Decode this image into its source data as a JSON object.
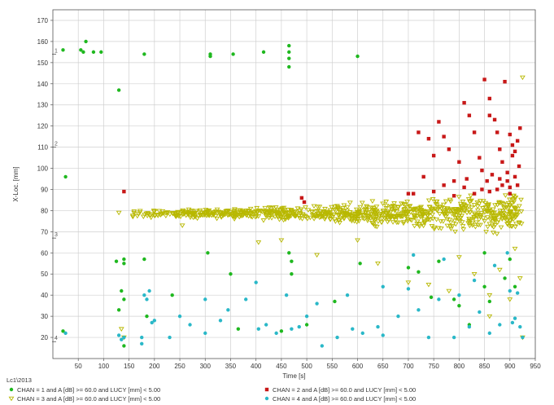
{
  "chart_data": {
    "type": "scatter",
    "title": "",
    "xlabel": "Time [s]",
    "ylabel": "X-Loc. [mm]",
    "xlim": [
      0,
      950
    ],
    "ylim": [
      10,
      175
    ],
    "x_ticks": [
      50,
      100,
      150,
      200,
      250,
      300,
      350,
      400,
      450,
      500,
      550,
      600,
      650,
      700,
      750,
      800,
      850,
      900,
      950
    ],
    "y_ticks": [
      20,
      30,
      40,
      50,
      60,
      70,
      80,
      90,
      100,
      110,
      120,
      130,
      140,
      150,
      160,
      170
    ],
    "grid": true,
    "channel_markers": [
      {
        "label": "1",
        "y": 154
      },
      {
        "label": "2",
        "y": 110
      },
      {
        "label": "3",
        "y": 67
      },
      {
        "label": "4",
        "y": 18
      }
    ],
    "legend_heading": "Lc1\\2013",
    "legend_placement": "bottom",
    "series": [
      {
        "name": "CHAN = 1 and A [dB] >= 60.0 and LUCY [mm] < 5.00",
        "color": "#1fb81f",
        "marker": "circle",
        "points": [
          [
            20,
            156
          ],
          [
            55,
            156
          ],
          [
            60,
            155
          ],
          [
            65,
            160
          ],
          [
            80,
            155
          ],
          [
            95,
            155
          ],
          [
            180,
            154
          ],
          [
            310,
            154
          ],
          [
            310,
            153
          ],
          [
            355,
            154
          ],
          [
            415,
            155
          ],
          [
            465,
            158
          ],
          [
            465,
            155
          ],
          [
            465,
            152
          ],
          [
            465,
            148
          ],
          [
            600,
            153
          ],
          [
            130,
            137
          ],
          [
            25,
            96
          ],
          [
            125,
            56
          ],
          [
            140,
            57
          ],
          [
            140,
            55
          ],
          [
            135,
            42
          ],
          [
            180,
            57
          ],
          [
            185,
            30
          ],
          [
            235,
            40
          ],
          [
            305,
            60
          ],
          [
            350,
            50
          ],
          [
            465,
            60
          ],
          [
            470,
            56
          ],
          [
            470,
            50
          ],
          [
            130,
            33
          ],
          [
            140,
            38
          ],
          [
            500,
            26
          ],
          [
            555,
            37
          ],
          [
            605,
            55
          ],
          [
            700,
            53
          ],
          [
            720,
            51
          ],
          [
            745,
            39
          ],
          [
            790,
            38
          ],
          [
            800,
            35
          ],
          [
            850,
            60
          ],
          [
            900,
            57
          ],
          [
            760,
            56
          ],
          [
            820,
            26
          ],
          [
            850,
            44
          ],
          [
            860,
            37
          ],
          [
            890,
            48
          ],
          [
            910,
            44
          ],
          [
            140,
            16
          ],
          [
            20,
            23
          ],
          [
            365,
            24
          ],
          [
            450,
            23
          ]
        ]
      },
      {
        "name": "CHAN = 2 and A [dB] >= 60.0 and LUCY [mm] < 5.00",
        "color": "#c81818",
        "marker": "square",
        "points": [
          [
            140,
            89
          ],
          [
            490,
            86
          ],
          [
            495,
            84
          ],
          [
            700,
            88
          ],
          [
            720,
            117
          ],
          [
            740,
            114
          ],
          [
            750,
            106
          ],
          [
            760,
            122
          ],
          [
            770,
            115
          ],
          [
            780,
            109
          ],
          [
            790,
            94
          ],
          [
            800,
            103
          ],
          [
            810,
            131
          ],
          [
            815,
            95
          ],
          [
            820,
            125
          ],
          [
            830,
            117
          ],
          [
            840,
            105
          ],
          [
            845,
            90
          ],
          [
            850,
            142
          ],
          [
            860,
            133
          ],
          [
            860,
            125
          ],
          [
            870,
            123
          ],
          [
            875,
            117
          ],
          [
            880,
            109
          ],
          [
            885,
            103
          ],
          [
            890,
            141
          ],
          [
            895,
            98
          ],
          [
            900,
            116
          ],
          [
            905,
            111
          ],
          [
            910,
            108
          ],
          [
            915,
            113
          ],
          [
            918,
            101
          ],
          [
            920,
            119
          ],
          [
            915,
            92
          ],
          [
            900,
            88
          ],
          [
            880,
            95
          ],
          [
            860,
            89
          ],
          [
            830,
            88
          ],
          [
            810,
            91
          ],
          [
            790,
            87
          ],
          [
            770,
            92
          ],
          [
            750,
            89
          ],
          [
            730,
            96
          ],
          [
            710,
            88
          ],
          [
            900,
            91
          ],
          [
            910,
            96
          ],
          [
            905,
            106
          ],
          [
            895,
            94
          ],
          [
            885,
            92
          ],
          [
            875,
            90
          ],
          [
            865,
            97
          ],
          [
            855,
            94
          ],
          [
            845,
            99
          ]
        ]
      },
      {
        "name": "CHAN = 3 and A [dB] >= 60.0 and LUCY [mm] < 5.00",
        "color": "#b8b800",
        "marker": "triangle-down",
        "cloud": {
          "x_start": 150,
          "x_end": 925,
          "count": 900,
          "center_y": 78.5,
          "spread_start": 2.5,
          "spread_end": 14
        },
        "points": [
          [
            130,
            79
          ],
          [
            135,
            24
          ],
          [
            140,
            20
          ],
          [
            255,
            73
          ],
          [
            405,
            65
          ],
          [
            450,
            66
          ],
          [
            520,
            59
          ],
          [
            600,
            66
          ],
          [
            640,
            55
          ],
          [
            700,
            46
          ],
          [
            740,
            45
          ],
          [
            780,
            42
          ],
          [
            800,
            58
          ],
          [
            830,
            50
          ],
          [
            860,
            40
          ],
          [
            880,
            52
          ],
          [
            900,
            38
          ],
          [
            910,
            62
          ],
          [
            920,
            48
          ],
          [
            925,
            143
          ],
          [
            925,
            20
          ],
          [
            860,
            30
          ]
        ]
      },
      {
        "name": "CHAN = 4 and A [dB] >= 60.0 and LUCY [mm] < 5.00",
        "color": "#2ab8c8",
        "marker": "circle",
        "points": [
          [
            25,
            22
          ],
          [
            130,
            21
          ],
          [
            135,
            19
          ],
          [
            140,
            20
          ],
          [
            175,
            17
          ],
          [
            175,
            20
          ],
          [
            180,
            40
          ],
          [
            185,
            38
          ],
          [
            190,
            42
          ],
          [
            195,
            27
          ],
          [
            230,
            20
          ],
          [
            270,
            26
          ],
          [
            300,
            22
          ],
          [
            330,
            28
          ],
          [
            380,
            38
          ],
          [
            405,
            24
          ],
          [
            420,
            26
          ],
          [
            440,
            22
          ],
          [
            470,
            24
          ],
          [
            485,
            25
          ],
          [
            500,
            30
          ],
          [
            530,
            16
          ],
          [
            560,
            20
          ],
          [
            590,
            24
          ],
          [
            610,
            22
          ],
          [
            640,
            25
          ],
          [
            650,
            21
          ],
          [
            680,
            30
          ],
          [
            700,
            43
          ],
          [
            720,
            33
          ],
          [
            740,
            20
          ],
          [
            760,
            38
          ],
          [
            790,
            20
          ],
          [
            800,
            40
          ],
          [
            820,
            25
          ],
          [
            840,
            32
          ],
          [
            860,
            22
          ],
          [
            880,
            26
          ],
          [
            900,
            42
          ],
          [
            905,
            27
          ],
          [
            910,
            29
          ],
          [
            915,
            41
          ],
          [
            920,
            25
          ],
          [
            925,
            20
          ],
          [
            895,
            60
          ],
          [
            870,
            54
          ],
          [
            830,
            47
          ],
          [
            770,
            57
          ],
          [
            710,
            59
          ],
          [
            650,
            44
          ],
          [
            580,
            40
          ],
          [
            520,
            36
          ],
          [
            460,
            40
          ],
          [
            400,
            46
          ],
          [
            345,
            33
          ],
          [
            300,
            38
          ],
          [
            250,
            30
          ],
          [
            200,
            28
          ]
        ]
      }
    ]
  }
}
